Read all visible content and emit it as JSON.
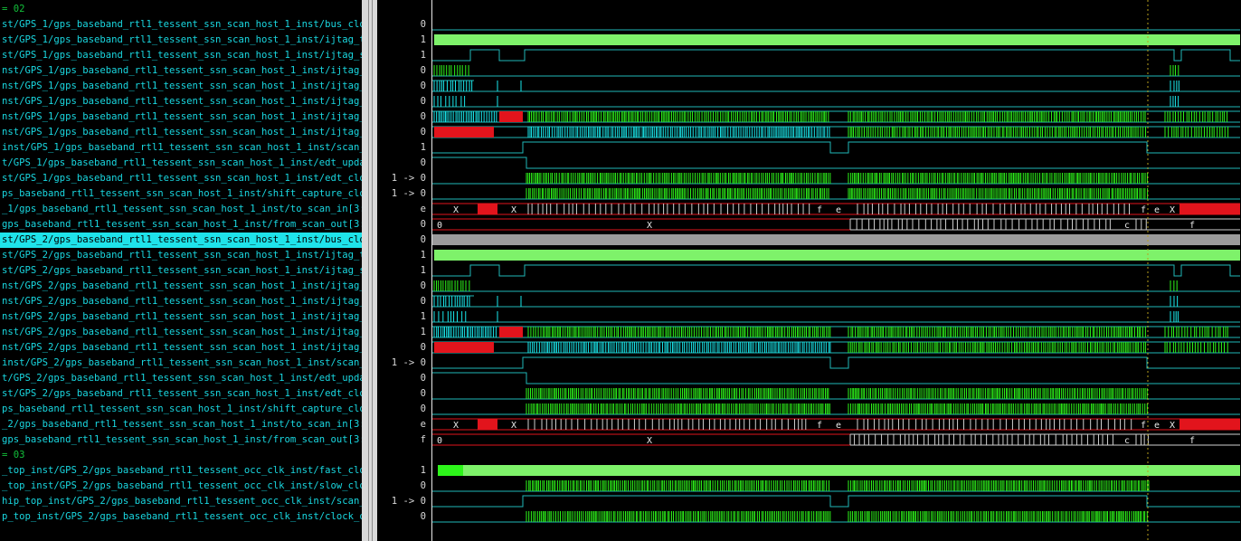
{
  "rows": [
    {
      "name": "= 02",
      "value": "",
      "kind": "group"
    },
    {
      "name": "st/GPS_1/gps_baseband_rtl1_tessent_ssn_scan_host_1_inst/bus_clock",
      "value": "0",
      "kind": "flat_low"
    },
    {
      "name": "st/GPS_1/gps_baseband_rtl1_tessent_ssn_scan_host_1_inst/ijtag_tck",
      "value": "1",
      "kind": "bar"
    },
    {
      "name": "st/GPS_1/gps_baseband_rtl1_tessent_ssn_scan_host_1_inst/ijtag_sel",
      "value": "1",
      "kind": "sel"
    },
    {
      "name": "nst/GPS_1/gps_baseband_rtl1_tessent_ssn_scan_host_1_inst/ijtag_ce",
      "value": "0",
      "kind": "ce"
    },
    {
      "name": "nst/GPS_1/gps_baseband_rtl1_tessent_ssn_scan_host_1_inst/ijtag_se",
      "value": "0",
      "kind": "se"
    },
    {
      "name": "nst/GPS_1/gps_baseband_rtl1_tessent_ssn_scan_host_1_inst/ijtag_ue",
      "value": "0",
      "kind": "ue"
    },
    {
      "name": "nst/GPS_1/gps_baseband_rtl1_tessent_ssn_scan_host_1_inst/ijtag_si",
      "value": "0",
      "kind": "si"
    },
    {
      "name": "nst/GPS_1/gps_baseband_rtl1_tessent_ssn_scan_host_1_inst/ijtag_so",
      "value": "0",
      "kind": "so"
    },
    {
      "name": "inst/GPS_1/gps_baseband_rtl1_tessent_ssn_scan_host_1_inst/scan_en",
      "value": "1",
      "kind": "scan_en"
    },
    {
      "name": "t/GPS_1/gps_baseband_rtl1_tessent_ssn_scan_host_1_inst/edt_update",
      "value": "0",
      "kind": "edt_update"
    },
    {
      "name": "st/GPS_1/gps_baseband_rtl1_tessent_ssn_scan_host_1_inst/edt_clock",
      "value": "1 -> 0",
      "kind": "busy_green"
    },
    {
      "name": "ps_baseband_rtl1_tessent_ssn_scan_host_1_inst/shift_capture_clock",
      "value": "1 -> 0",
      "kind": "busy_green"
    },
    {
      "name": "_1/gps_baseband_rtl1_tessent_ssn_scan_host_1_inst/to_scan_in[3:0]",
      "value": "e",
      "kind": "bus_in"
    },
    {
      "name": "gps_baseband_rtl1_tessent_ssn_scan_host_1_inst/from_scan_out[3:0]",
      "value": "0",
      "kind": "bus_out"
    },
    {
      "name": "st/GPS_2/gps_baseband_rtl1_tessent_ssn_scan_host_1_inst/bus_clock",
      "value": "0",
      "kind": "gray_bar",
      "selected": true
    },
    {
      "name": "st/GPS_2/gps_baseband_rtl1_tessent_ssn_scan_host_1_inst/ijtag_tck",
      "value": "1",
      "kind": "bar"
    },
    {
      "name": "st/GPS_2/gps_baseband_rtl1_tessent_ssn_scan_host_1_inst/ijtag_sel",
      "value": "1",
      "kind": "sel"
    },
    {
      "name": "nst/GPS_2/gps_baseband_rtl1_tessent_ssn_scan_host_1_inst/ijtag_ce",
      "value": "0",
      "kind": "ce"
    },
    {
      "name": "nst/GPS_2/gps_baseband_rtl1_tessent_ssn_scan_host_1_inst/ijtag_se",
      "value": "0",
      "kind": "se"
    },
    {
      "name": "nst/GPS_2/gps_baseband_rtl1_tessent_ssn_scan_host_1_inst/ijtag_ue",
      "value": "1",
      "kind": "ue"
    },
    {
      "name": "nst/GPS_2/gps_baseband_rtl1_tessent_ssn_scan_host_1_inst/ijtag_si",
      "value": "1",
      "kind": "si"
    },
    {
      "name": "nst/GPS_2/gps_baseband_rtl1_tessent_ssn_scan_host_1_inst/ijtag_so",
      "value": "0",
      "kind": "so"
    },
    {
      "name": "inst/GPS_2/gps_baseband_rtl1_tessent_ssn_scan_host_1_inst/scan_en",
      "value": "1 -> 0",
      "kind": "scan_en"
    },
    {
      "name": "t/GPS_2/gps_baseband_rtl1_tessent_ssn_scan_host_1_inst/edt_update",
      "value": "0",
      "kind": "edt_update"
    },
    {
      "name": "st/GPS_2/gps_baseband_rtl1_tessent_ssn_scan_host_1_inst/edt_clock",
      "value": "0",
      "kind": "busy_green"
    },
    {
      "name": "ps_baseband_rtl1_tessent_ssn_scan_host_1_inst/shift_capture_clock",
      "value": "0",
      "kind": "busy_green"
    },
    {
      "name": "_2/gps_baseband_rtl1_tessent_ssn_scan_host_1_inst/to_scan_in[3:0]",
      "value": "e",
      "kind": "bus_in"
    },
    {
      "name": "gps_baseband_rtl1_tessent_ssn_scan_host_1_inst/from_scan_out[3:0]",
      "value": "f",
      "kind": "bus_out"
    },
    {
      "name": "= 03",
      "value": "",
      "kind": "group"
    },
    {
      "name": "_top_inst/GPS_2/gps_baseband_rtl1_tessent_occ_clk_inst/fast_clock",
      "value": "1",
      "kind": "fast_clock"
    },
    {
      "name": "_top_inst/GPS_2/gps_baseband_rtl1_tessent_occ_clk_inst/slow_clock",
      "value": "0",
      "kind": "busy_green"
    },
    {
      "name": "hip_top_inst/GPS_2/gps_baseband_rtl1_tessent_occ_clk_inst/scan_en",
      "value": "1 -> 0",
      "kind": "scan_en"
    },
    {
      "name": "p_top_inst/GPS_2/gps_baseband_rtl1_tessent_occ_clk_inst/clock_out",
      "value": "0",
      "kind": "busy_green"
    }
  ],
  "bus_labels": {
    "in_x1": "X",
    "in_x2": "X",
    "in_f": "f",
    "in_e": "e",
    "in_e2": "e",
    "in_x3": "X",
    "out_0": "0",
    "out_x": "X",
    "out_c": "c",
    "out_f": "f"
  },
  "colors": {
    "signal": "#1fb7b8",
    "green": "#2df51a",
    "bright_green": "#7ef26a",
    "cyan": "#19e8ec",
    "red": "#e2141c",
    "gray": "#9b9b9b",
    "selected_bg": "#1fe3ea",
    "group_text": "#12c03a",
    "name_text": "#19d7e0",
    "marker": "#b8a11c"
  }
}
